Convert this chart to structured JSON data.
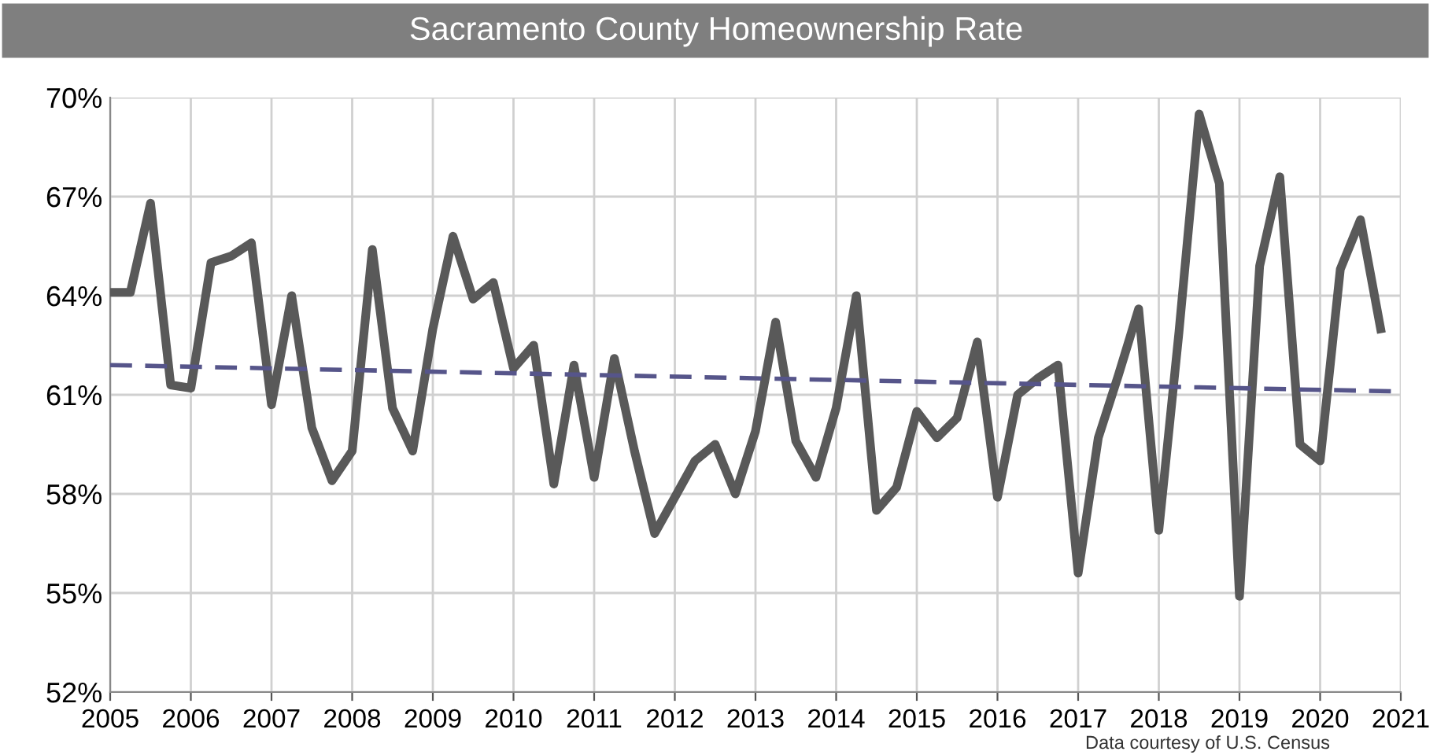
{
  "chart_data": {
    "type": "line",
    "title": "Sacramento County Homeownership Rate",
    "x": [
      2005,
      2005.25,
      2005.5,
      2005.75,
      2006,
      2006.25,
      2006.5,
      2006.75,
      2007,
      2007.25,
      2007.5,
      2007.75,
      2008,
      2008.25,
      2008.5,
      2008.75,
      2009,
      2009.25,
      2009.5,
      2009.75,
      2010,
      2010.25,
      2010.5,
      2010.75,
      2011,
      2011.25,
      2011.5,
      2011.75,
      2012,
      2012.25,
      2012.5,
      2012.75,
      2013,
      2013.25,
      2013.5,
      2013.75,
      2014,
      2014.25,
      2014.5,
      2014.75,
      2015,
      2015.25,
      2015.5,
      2015.75,
      2016,
      2016.25,
      2016.5,
      2016.75,
      2017,
      2017.25,
      2017.5,
      2017.75,
      2018,
      2018.25,
      2018.5,
      2018.75,
      2019,
      2019.25,
      2019.5,
      2019.75,
      2020,
      2020.25,
      2020.5,
      2020.75
    ],
    "series": [
      {
        "color": "#595959",
        "line_style": "solid",
        "values": [
          64.1,
          64.1,
          66.8,
          61.3,
          61.2,
          65.0,
          65.2,
          65.6,
          60.7,
          64.0,
          60.0,
          58.4,
          59.3,
          65.4,
          60.6,
          59.3,
          63.0,
          65.8,
          63.9,
          64.4,
          61.8,
          62.5,
          58.3,
          61.9,
          58.5,
          62.1,
          59.3,
          56.8,
          57.9,
          59.0,
          59.5,
          58.0,
          59.9,
          63.2,
          59.6,
          58.5,
          60.6,
          64.0,
          57.5,
          58.2,
          60.5,
          59.7,
          60.3,
          62.6,
          57.9,
          61.0,
          61.5,
          61.9,
          55.6,
          59.7,
          61.6,
          63.6,
          56.9,
          62.9,
          69.5,
          67.4,
          54.9,
          64.9,
          67.6,
          59.5,
          59.0,
          64.8,
          66.3,
          63.0
        ]
      },
      {
        "type": "line",
        "color": "#56558a",
        "line_style": "dashed",
        "x": [
          2005,
          2021
        ],
        "values": [
          61.9,
          61.1
        ]
      }
    ],
    "xlim": [
      2005,
      2021
    ],
    "xticks": [
      2005,
      2006,
      2007,
      2008,
      2009,
      2010,
      2011,
      2012,
      2013,
      2014,
      2015,
      2016,
      2017,
      2018,
      2019,
      2020,
      2021
    ],
    "ylim": [
      52,
      70
    ],
    "yticks": [
      {
        "value": 52,
        "label": "52%"
      },
      {
        "value": 55,
        "label": "55%"
      },
      {
        "value": 58,
        "label": "58%"
      },
      {
        "value": 61,
        "label": "61%"
      },
      {
        "value": 64,
        "label": "64%"
      },
      {
        "value": 67,
        "label": "67%"
      },
      {
        "value": 70,
        "label": "70%"
      }
    ],
    "grid": true,
    "marker": "none",
    "annotations": [
      "Data courtesy of U.S. Census"
    ]
  }
}
